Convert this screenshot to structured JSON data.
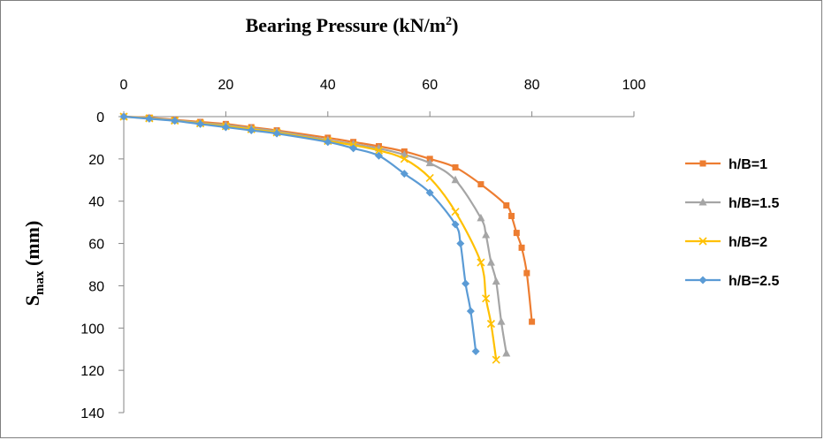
{
  "chart_data": {
    "type": "line",
    "title": "Bearing Pressure (kN/m",
    "title_sup": "2",
    "title_end": ")",
    "xlabel": "Bearing Pressure (kN/m2)",
    "ylabel_main": "S",
    "ylabel_sub": "max",
    "ylabel_rest": " (mm)",
    "xlim": [
      0,
      100
    ],
    "ylim": [
      0,
      140
    ],
    "x_ticks": [
      0,
      20,
      40,
      60,
      80,
      100
    ],
    "y_ticks": [
      0,
      20,
      40,
      60,
      80,
      100,
      120,
      140
    ],
    "x_axis_position": "top",
    "y_axis_reversed": true,
    "legend_position": "right",
    "series": [
      {
        "name": "h/B=1",
        "color": "#ED7D31",
        "marker": "square",
        "x": [
          0,
          5,
          10,
          15,
          20,
          25,
          30,
          40,
          45,
          50,
          55,
          60,
          65,
          70,
          75,
          76,
          77,
          78,
          79,
          80
        ],
        "y": [
          0,
          0.5,
          1.5,
          2.5,
          3.5,
          5,
          6.5,
          10,
          12,
          14,
          16.5,
          20,
          24,
          32,
          42,
          47,
          55,
          62,
          74,
          97
        ]
      },
      {
        "name": "h/B=1.5",
        "color": "#A5A5A5",
        "marker": "triangle",
        "x": [
          0,
          5,
          10,
          15,
          20,
          25,
          30,
          40,
          45,
          50,
          55,
          60,
          65,
          70,
          71,
          72,
          73,
          74,
          75
        ],
        "y": [
          0,
          0.7,
          1.7,
          3,
          4,
          5.5,
          7,
          11,
          13,
          15,
          18,
          22,
          30,
          48,
          56,
          69,
          78,
          97,
          112
        ]
      },
      {
        "name": "h/B=2",
        "color": "#FFC000",
        "marker": "x",
        "x": [
          0,
          5,
          10,
          15,
          20,
          25,
          30,
          40,
          45,
          50,
          55,
          60,
          65,
          70,
          71,
          72,
          73
        ],
        "y": [
          0,
          0.8,
          1.9,
          3.2,
          4.5,
          6,
          7.5,
          11.5,
          13.5,
          16,
          20,
          29,
          45,
          69,
          86,
          98,
          115
        ]
      },
      {
        "name": "h/B=2.5",
        "color": "#5B9BD5",
        "marker": "diamond",
        "x": [
          0,
          5,
          10,
          15,
          20,
          25,
          30,
          40,
          45,
          50,
          55,
          60,
          65,
          66,
          67,
          68,
          69
        ],
        "y": [
          0,
          1,
          2,
          3.5,
          5,
          6.5,
          8,
          12,
          15,
          18.5,
          27,
          36,
          51,
          60,
          79,
          92,
          111
        ]
      }
    ]
  }
}
